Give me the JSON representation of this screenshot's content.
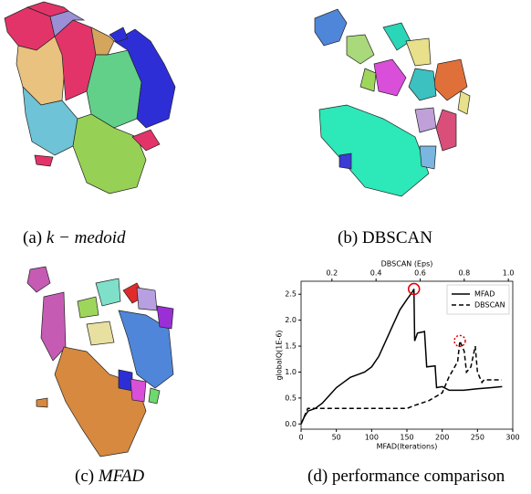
{
  "captions": [
    {
      "label": "(a)",
      "text": "k − medoid"
    },
    {
      "label": "(b)",
      "text": "DBSCAN"
    },
    {
      "label": "(c)",
      "text": "MFAD"
    },
    {
      "label": "(d)",
      "text": "performance comparison"
    }
  ],
  "chart_data": {
    "type": "line",
    "xlabel": "MFAD(Iterations)",
    "x2label": "DBSCAN (Eps)",
    "ylabel": "globalQ(1E-6)",
    "xlim": [
      0,
      300
    ],
    "xticks": [
      0,
      50,
      100,
      150,
      200,
      250,
      300
    ],
    "x2lim": [
      0.06,
      1.02
    ],
    "x2ticks": [
      0.2,
      0.4,
      0.6,
      0.8,
      {
        "value": 1.0,
        "label": "1.0"
      }
    ],
    "ylim": [
      -0.1,
      2.75
    ],
    "yticks": [
      {
        "value": 0,
        "label": "0.0"
      },
      0.5,
      {
        "value": 1,
        "label": "1.0"
      },
      1.5,
      {
        "value": 2,
        "label": "2.0"
      },
      2.5
    ],
    "legend": "upper right",
    "series": [
      {
        "name": "MFAD",
        "color": "#000000",
        "dash": "solid",
        "axis": "x",
        "x": [
          0,
          5,
          10,
          20,
          30,
          40,
          50,
          60,
          70,
          80,
          90,
          100,
          110,
          120,
          130,
          140,
          150,
          158,
          160,
          161,
          165,
          175,
          178,
          190,
          192,
          200,
          210,
          230,
          250,
          270,
          285
        ],
        "values": [
          0.0,
          0.15,
          0.25,
          0.3,
          0.4,
          0.55,
          0.7,
          0.8,
          0.9,
          0.95,
          1.0,
          1.1,
          1.3,
          1.6,
          1.9,
          2.2,
          2.4,
          2.55,
          2.6,
          1.6,
          1.75,
          1.78,
          1.1,
          1.12,
          0.7,
          0.72,
          0.65,
          0.65,
          0.68,
          0.7,
          0.72
        ]
      },
      {
        "name": "DBSCAN",
        "color": "#000000",
        "dash": "dashed",
        "axis": "x2",
        "x": [
          0.06,
          0.09,
          0.54,
          0.57,
          0.64,
          0.7,
          0.73,
          0.77,
          0.78,
          0.8,
          0.81,
          0.83,
          0.85,
          0.86,
          0.88,
          0.89,
          0.97
        ],
        "values": [
          0.0,
          0.3,
          0.3,
          0.35,
          0.45,
          0.6,
          0.9,
          1.2,
          1.6,
          1.4,
          1.0,
          1.1,
          1.5,
          1.0,
          0.8,
          0.85,
          0.85
        ]
      }
    ],
    "highlights": [
      {
        "series": 0,
        "index": 18,
        "color": "#e00000",
        "dash": "solid"
      },
      {
        "series": 1,
        "index": 8,
        "color": "#e00000",
        "dash": "dotted"
      }
    ]
  }
}
